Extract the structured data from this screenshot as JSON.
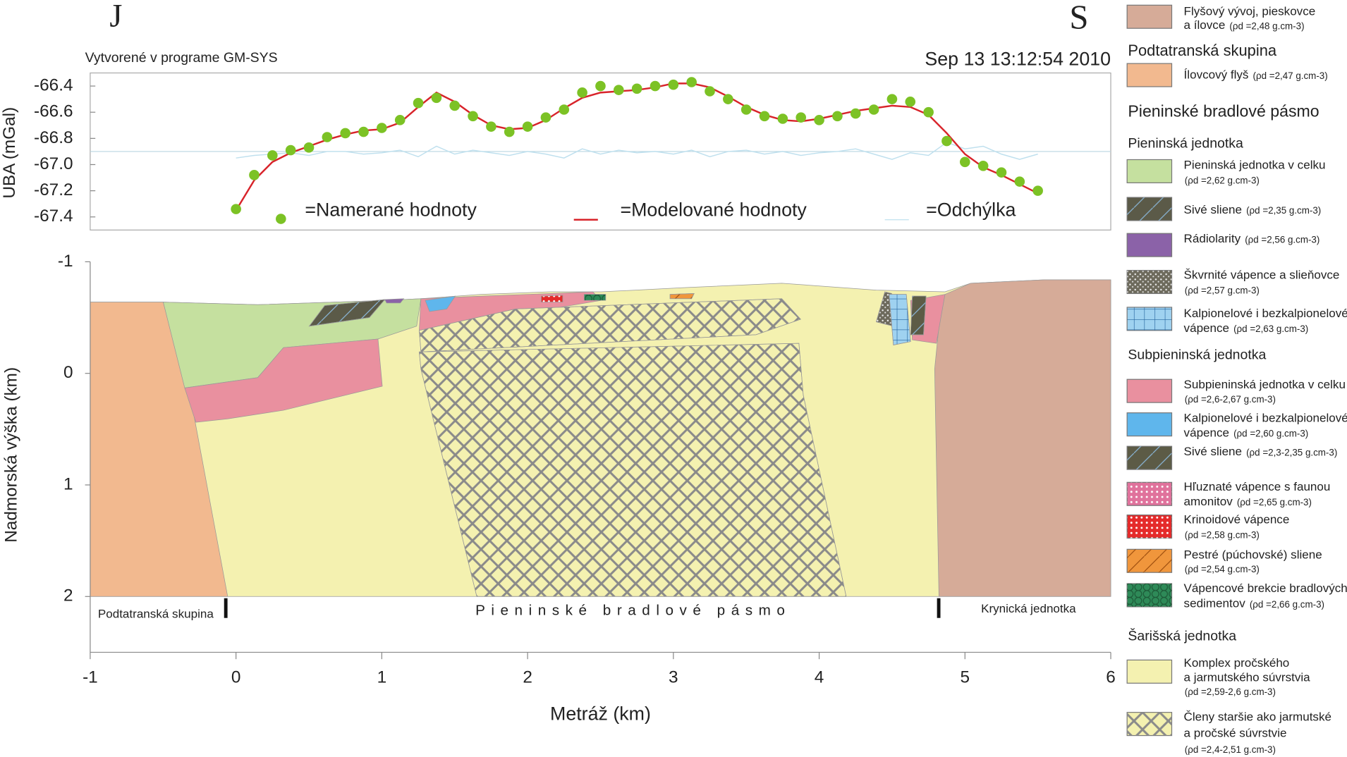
{
  "page": {
    "left_corner": "J",
    "right_corner": "S",
    "software": "Vytvorené v programe GM-SYS",
    "timestamp": "Sep 13 13:12:54 2010"
  },
  "chart_data": [
    {
      "type": "line",
      "ylabel": "UBA (mGal)",
      "xlim": [
        -1,
        6
      ],
      "ylim": [
        -67.5,
        -66.3
      ],
      "yticks": [
        -66.4,
        -66.6,
        -66.8,
        {
          "value": -67,
          "label": "-67.0"
        },
        -67.2,
        -67.4
      ],
      "reference_line": -66.9,
      "x": [
        0,
        0.125,
        0.25,
        0.375,
        0.5,
        0.625,
        0.75,
        0.875,
        1,
        1.125,
        1.25,
        1.375,
        1.5,
        1.625,
        1.75,
        1.875,
        2,
        2.125,
        2.25,
        2.375,
        2.5,
        2.625,
        2.75,
        2.875,
        3,
        3.125,
        3.25,
        3.375,
        3.5,
        3.625,
        3.75,
        3.875,
        4,
        4.125,
        4.25,
        4.375,
        4.5,
        4.625,
        4.75,
        4.875,
        5,
        5.125,
        5.25,
        5.375,
        5.5
      ],
      "series": [
        {
          "name": "=Namerané hodnoty",
          "style": "points",
          "color": "#7cc225",
          "values": [
            -67.34,
            -67.08,
            -66.93,
            -66.89,
            -66.87,
            -66.79,
            -66.76,
            -66.75,
            -66.72,
            -66.66,
            -66.53,
            -66.49,
            -66.55,
            -66.63,
            -66.71,
            -66.75,
            -66.71,
            -66.64,
            -66.58,
            -66.45,
            -66.4,
            -66.43,
            -66.42,
            -66.4,
            -66.39,
            -66.37,
            -66.44,
            -66.5,
            -66.58,
            -66.63,
            -66.65,
            -66.64,
            -66.66,
            -66.63,
            -66.61,
            -66.58,
            -66.5,
            -66.52,
            -66.6,
            -66.82,
            -66.98,
            -67.01,
            -67.06,
            -67.13,
            -67.2
          ]
        },
        {
          "name": "=Modelované hodnoty",
          "style": "line",
          "color": "#d8232a",
          "values": [
            -67.35,
            -67.12,
            -66.98,
            -66.91,
            -66.86,
            -66.81,
            -66.77,
            -66.74,
            -66.73,
            -66.68,
            -66.56,
            -66.45,
            -66.52,
            -66.62,
            -66.7,
            -66.73,
            -66.72,
            -66.66,
            -66.57,
            -66.49,
            -66.45,
            -66.44,
            -66.43,
            -66.41,
            -66.38,
            -66.38,
            -66.41,
            -66.48,
            -66.56,
            -66.62,
            -66.66,
            -66.67,
            -66.65,
            -66.62,
            -66.59,
            -66.57,
            -66.55,
            -66.56,
            -66.62,
            -66.76,
            -66.92,
            -67.02,
            -67.08,
            -67.15,
            -67.22
          ]
        },
        {
          "name": "=Odchýlka",
          "style": "line",
          "color": "#bfe0ee",
          "values": [
            -66.95,
            -66.93,
            -66.92,
            -66.91,
            -66.93,
            -66.9,
            -66.9,
            -66.92,
            -66.91,
            -66.89,
            -66.94,
            -66.86,
            -66.92,
            -66.89,
            -66.91,
            -66.93,
            -66.9,
            -66.92,
            -66.95,
            -66.88,
            -66.92,
            -66.89,
            -66.91,
            -66.9,
            -66.92,
            -66.89,
            -66.94,
            -66.9,
            -66.89,
            -66.92,
            -66.9,
            -66.93,
            -66.91,
            -66.9,
            -66.88,
            -66.92,
            -66.96,
            -66.91,
            -66.93,
            -66.83,
            -66.88,
            -66.86,
            -66.92,
            -66.96,
            -66.92
          ]
        }
      ]
    },
    {
      "type": "section",
      "xlabel": "Metráž (km)",
      "ylabel": "Nadmorská výška (km)",
      "xlim": [
        -1,
        6
      ],
      "ylim": [
        2.5,
        -1
      ],
      "xticks": [
        -1,
        0,
        1,
        2,
        3,
        4,
        5,
        6
      ],
      "yticks": [
        -1,
        0,
        1,
        2
      ],
      "regions": [
        "Podtatranská skupina",
        "Pieninské bradlové pásmo",
        "Krynická jednotka"
      ],
      "boundaries": [
        -0.07,
        4.82
      ]
    }
  ],
  "legend": {
    "groups": [
      {
        "items": [
          {
            "label": [
              "Flyšový vývoj, pieskovce",
              "a ílovce"
            ],
            "density": "(ρd =2,48 g.cm-3)",
            "color": "#d6ab98"
          }
        ]
      },
      {
        "title": "Podtatranská skupina",
        "items": [
          {
            "label": [
              "Ílovcový flyš"
            ],
            "density": "(ρd =2,47 g.cm-3)",
            "color": "#f2b98f"
          }
        ]
      },
      {
        "title": "Pieninské bradlové pásmo",
        "items": []
      },
      {
        "title": "Pieninská jednotka",
        "items": [
          {
            "label": [
              "Pieninská jednotka v celku"
            ],
            "density": "(ρd =2,62 g.cm-3)",
            "color": "#c5e09f"
          },
          {
            "label": [
              "Sivé sliene"
            ],
            "density": "(ρd =2,35 g.cm-3)",
            "color": "#5b5a48"
          },
          {
            "label": [
              "Rádiolarity"
            ],
            "density": "(ρd =2,56 g.cm-3)",
            "color": "#8b62a8"
          },
          {
            "label": [
              "Škvrnité vápence a slieňovce"
            ],
            "density": "(ρd =2,57 g.cm-3)",
            "color": "#6d6a5c"
          },
          {
            "label": [
              "Kalpionelové i bezkalpionelové",
              "vápence"
            ],
            "density": "(ρd =2,63 g.cm-3)",
            "color": "#9fd2f0"
          }
        ]
      },
      {
        "title": "Subpieninská jednotka",
        "items": [
          {
            "label": [
              "Subpieninská jednotka v celku"
            ],
            "density": "(ρd =2,6-2,67 g.cm-3)",
            "color": "#e9909f"
          },
          {
            "label": [
              "Kalpionelové i bezkalpionelové",
              "vápence"
            ],
            "density": "(ρd =2,60 g.cm-3)",
            "color": "#5fb6ec"
          },
          {
            "label": [
              "Sivé sliene"
            ],
            "density": "(ρd =2,3-2,35 g.cm-3)",
            "color": "#5c5b46"
          },
          {
            "label": [
              "Hľuznaté vápence s faunou",
              "amonitov"
            ],
            "density": "(ρd =2,65 g.cm-3)",
            "color": "#e0729c"
          },
          {
            "label": [
              "Krinoidové vápence"
            ],
            "density": "(ρd =2,58 g.cm-3)",
            "color": "#e52a2a"
          },
          {
            "label": [
              "Pestré (púchovské) sliene"
            ],
            "density": "(ρd =2,54 g.cm-3)",
            "color": "#f0963c"
          },
          {
            "label": [
              "Vápencové brekcie bradlových",
              "sedimentov"
            ],
            "density": "(ρd =2,66 g.cm-3)",
            "color": "#2e8a58"
          }
        ]
      },
      {
        "title": "Šarišská jednotka",
        "items": [
          {
            "label": [
              "Komplex pročského",
              "a jarmutského súvrstvia"
            ],
            "density": "(ρd =2,59-2,6 g.cm-3)",
            "color": "#f4f1b0"
          },
          {
            "label": [
              "Členy staršie ako jarmutské",
              "a pročské súvrstvie"
            ],
            "density": "(ρd =2,4-2,51 g.cm-3)",
            "color": "#f4f1b0"
          }
        ]
      }
    ]
  }
}
